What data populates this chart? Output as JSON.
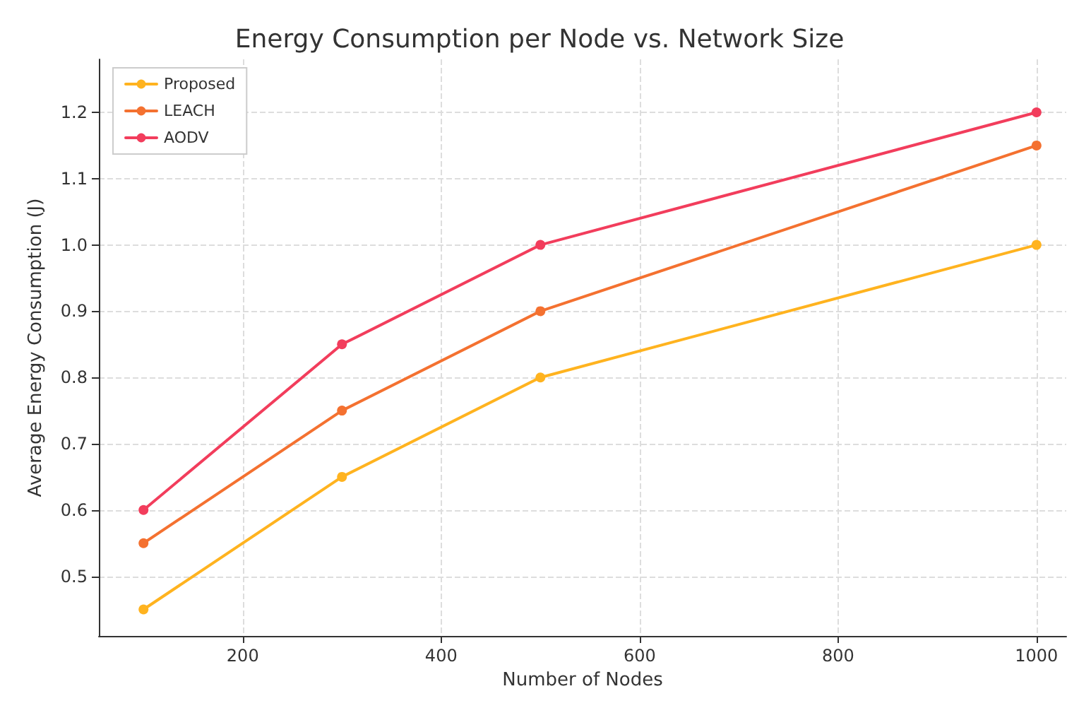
{
  "chart_data": {
    "type": "line",
    "title": "Energy Consumption per Node vs. Network Size",
    "xlabel": "Number of Nodes",
    "ylabel": "Average Energy Consumption (J)",
    "x": [
      100,
      300,
      500,
      1000
    ],
    "series": [
      {
        "name": "Proposed",
        "color": "#ffb31f",
        "values": [
          0.45,
          0.65,
          0.8,
          1.0
        ]
      },
      {
        "name": "LEACH",
        "color": "#f47130",
        "values": [
          0.55,
          0.75,
          0.9,
          1.15
        ]
      },
      {
        "name": "AODV",
        "color": "#f23d5c",
        "values": [
          0.6,
          0.85,
          1.0,
          1.2
        ]
      }
    ],
    "xlim": [
      55,
      1030
    ],
    "ylim": [
      0.41,
      1.28
    ],
    "xticks": [
      200,
      400,
      600,
      800,
      1000
    ],
    "yticks": [
      0.5,
      0.6,
      0.7,
      0.8,
      0.9,
      {
        "value": 1,
        "label": "1.0"
      },
      1.1,
      1.2
    ],
    "grid": true,
    "legend": "top left",
    "marker": "circle",
    "line_style": "solid"
  }
}
